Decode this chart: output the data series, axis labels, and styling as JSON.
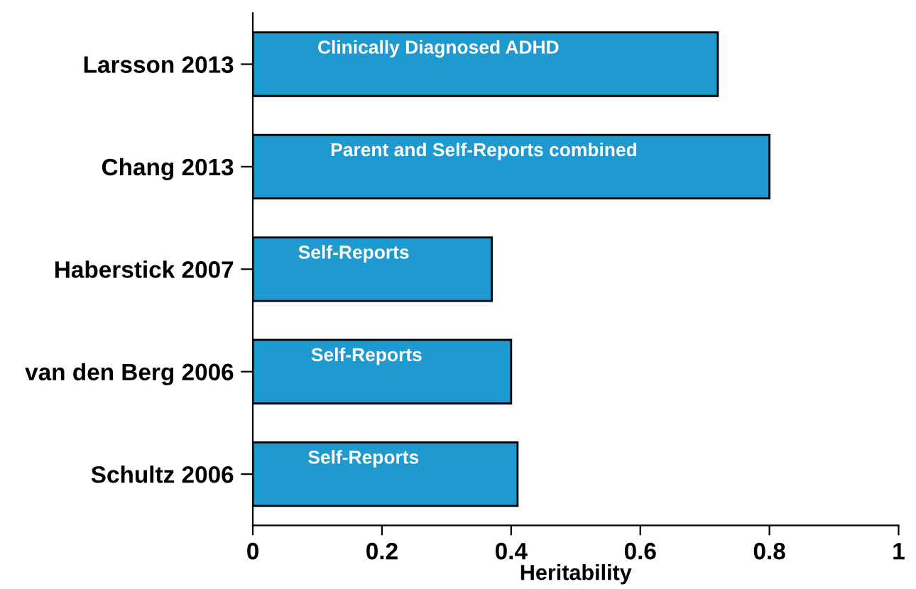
{
  "chart_data": {
    "type": "bar",
    "orientation": "horizontal",
    "xlabel": "Heritability",
    "categories": [
      "Larsson 2013",
      "Chang 2013",
      "Haberstick 2007",
      "van den Berg 2006",
      "Schultz 2006"
    ],
    "values": [
      0.72,
      0.8,
      0.37,
      0.4,
      0.41
    ],
    "color": "#1f9ad1",
    "xlim": [
      0,
      1
    ],
    "xticks": [
      0,
      0.2,
      0.4,
      0.6,
      0.8,
      1
    ],
    "grid": false,
    "annotations": [
      "Clinically Diagnosed ADHD",
      "Parent and Self-Reports combined",
      "Self-Reports",
      "Self-Reports",
      "Self-Reports"
    ]
  }
}
